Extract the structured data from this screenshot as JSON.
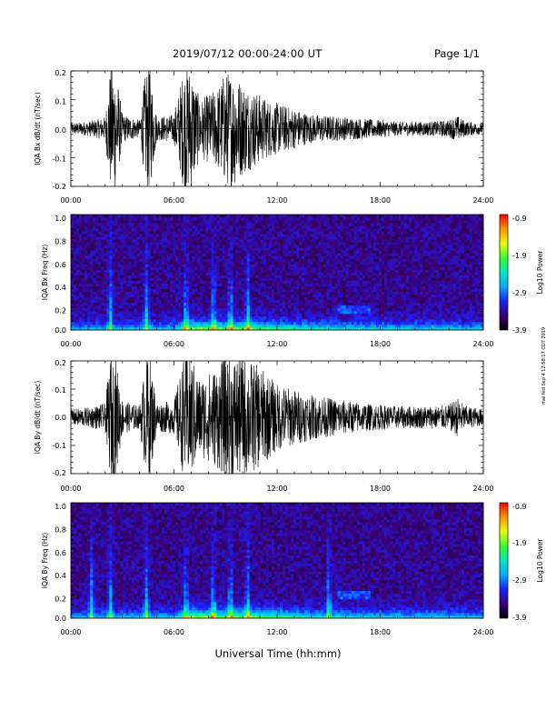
{
  "header": {
    "title": "2019/07/12   00:00-24:00 UT",
    "page": "Page 1/1"
  },
  "stamp": "mal fed Sep 4 12:58:17 CDT 2019",
  "x_axis_label": "Universal Time (hh:mm)",
  "colors": {
    "trace": "#000000",
    "background": "#ffffff"
  },
  "chart_data": [
    {
      "type": "line",
      "ylabel": "IQA Bx dB/dt (nT/sec)",
      "xlim": [
        "00:00",
        "24:00"
      ],
      "ylim": [
        -0.2,
        0.2
      ],
      "x_ticks": [
        "00:00",
        "06:00",
        "12:00",
        "18:00",
        "24:00"
      ],
      "y_ticks": [
        "-0.2",
        "-0.1",
        "0.0",
        "0.1",
        "0.2"
      ],
      "series": [
        {
          "x_hours": [
            0,
            1,
            2,
            2.3,
            2.6,
            3,
            4,
            4.4,
            4.6,
            5,
            6,
            6.6,
            7,
            7.5,
            8,
            8.5,
            9,
            9.5,
            10,
            10.5,
            11,
            11.5,
            12,
            12.5,
            13,
            14,
            15,
            16,
            17,
            18,
            19,
            20,
            21,
            22,
            22.5,
            23,
            24
          ],
          "amplitude": [
            0.02,
            0.025,
            0.04,
            0.22,
            0.22,
            0.05,
            0.03,
            0.22,
            0.22,
            0.04,
            0.05,
            0.22,
            0.22,
            0.1,
            0.12,
            0.14,
            0.2,
            0.2,
            0.16,
            0.14,
            0.12,
            0.1,
            0.09,
            0.08,
            0.07,
            0.05,
            0.045,
            0.04,
            0.035,
            0.03,
            0.025,
            0.025,
            0.025,
            0.03,
            0.045,
            0.025,
            0.02
          ]
        }
      ]
    },
    {
      "type": "heatmap",
      "ylabel": "IQA Bx Freq (Hz)",
      "xlim": [
        "00:00",
        "24:00"
      ],
      "ylim": [
        0.0,
        1.0
      ],
      "x_ticks": [
        "00:00",
        "06:00",
        "12:00",
        "18:00",
        "24:00"
      ],
      "y_ticks": [
        "0.0",
        "0.2",
        "0.4",
        "0.6",
        "0.8",
        "1.0"
      ],
      "colorbar": {
        "label": "Log10 Power",
        "range": [
          -3.9,
          -0.9
        ],
        "ticks": [
          "-0.9",
          "-1.9",
          "-2.9",
          "-3.9"
        ]
      },
      "bursts_hours": [
        2.3,
        4.4,
        6.7,
        8.3,
        9.3,
        10.3
      ],
      "arc": {
        "start_hours": 15.5,
        "end_hours": 17.5,
        "freq_hz": 0.18
      }
    },
    {
      "type": "line",
      "ylabel": "IQA By dB/dt (nT/sec)",
      "xlim": [
        "00:00",
        "24:00"
      ],
      "ylim": [
        -0.2,
        0.2
      ],
      "x_ticks": [
        "00:00",
        "06:00",
        "12:00",
        "18:00",
        "24:00"
      ],
      "y_ticks": [
        "-0.2",
        "-0.1",
        "0.0",
        "0.1",
        "0.2"
      ],
      "series": [
        {
          "x_hours": [
            0,
            1,
            2,
            2.3,
            2.6,
            3,
            4,
            4.4,
            4.6,
            5,
            6,
            6.6,
            7,
            7.5,
            8,
            8.5,
            9,
            9.5,
            10,
            10.5,
            11,
            11.5,
            12,
            12.5,
            13,
            14,
            15,
            16,
            17,
            18,
            19,
            20,
            21,
            22,
            22.5,
            23,
            24
          ],
          "amplitude": [
            0.03,
            0.035,
            0.05,
            0.22,
            0.22,
            0.06,
            0.04,
            0.22,
            0.22,
            0.05,
            0.06,
            0.22,
            0.22,
            0.14,
            0.16,
            0.18,
            0.22,
            0.22,
            0.22,
            0.2,
            0.18,
            0.15,
            0.12,
            0.11,
            0.1,
            0.08,
            0.07,
            0.06,
            0.05,
            0.045,
            0.04,
            0.04,
            0.04,
            0.045,
            0.07,
            0.04,
            0.03
          ]
        }
      ]
    },
    {
      "type": "heatmap",
      "ylabel": "IQA By Freq (Hz)",
      "xlim": [
        "00:00",
        "24:00"
      ],
      "ylim": [
        0.0,
        1.0
      ],
      "x_ticks": [
        "00:00",
        "06:00",
        "12:00",
        "18:00",
        "24:00"
      ],
      "y_ticks": [
        "0.0",
        "0.2",
        "0.4",
        "0.6",
        "0.8",
        "1.0"
      ],
      "colorbar": {
        "label": "Log10 Power",
        "range": [
          -3.9,
          -0.9
        ],
        "ticks": [
          "-0.9",
          "-1.9",
          "-2.9",
          "-3.9"
        ]
      },
      "bursts_hours": [
        1.2,
        2.3,
        4.4,
        6.7,
        8.3,
        9.3,
        10.3,
        15.0
      ],
      "arc": {
        "start_hours": 15.5,
        "end_hours": 17.5,
        "freq_hz": 0.2
      }
    }
  ]
}
